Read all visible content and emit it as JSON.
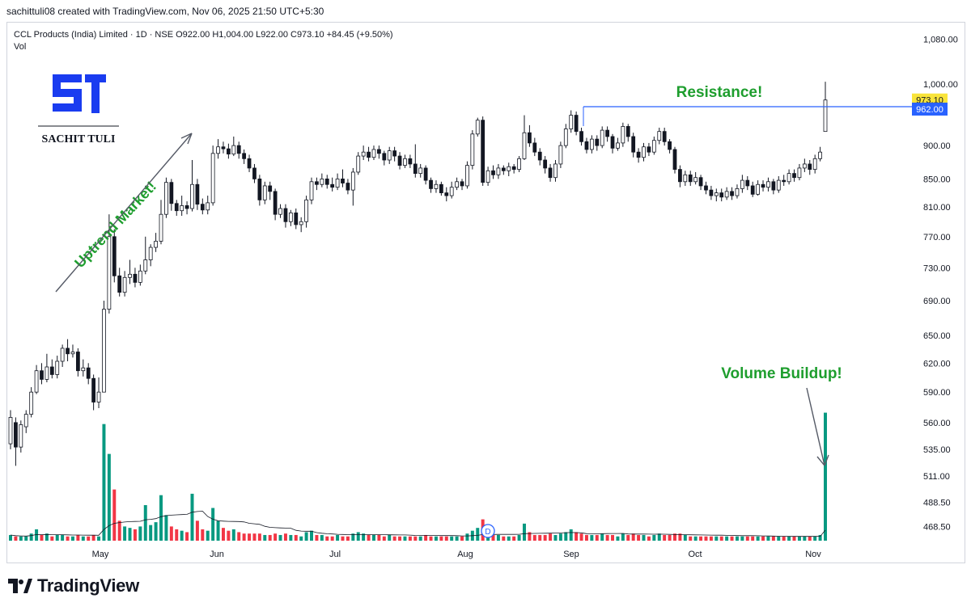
{
  "header": {
    "attribution": "sachittuli08 created with TradingView.com, Nov 06, 2025 21:50 UTC+5:30",
    "symbol": "CCL Products (India) Limited · 1D · NSE",
    "ohlc": "O922.00  H1,004.00  L922.00  C973.10  +84.45 (+9.50%)",
    "vol_label": "Vol"
  },
  "brand": {
    "name": "SACHIT TULI",
    "mark": "ST",
    "color": "#1a3cf0"
  },
  "footer": {
    "logo_text": "TradingView"
  },
  "annotations": {
    "uptrend": "Uptrend Market!",
    "resistance": "Resistance!",
    "volume": "Volume Buildup!"
  },
  "colors": {
    "up": "#089981",
    "down": "#f23645",
    "text_green": "#1e9e2e",
    "resistance_line": "#2962ff",
    "price_tag": "#f9e43a"
  },
  "chart_data": {
    "type": "candlestick",
    "title": "CCL Products (India) Limited · 1D · NSE",
    "y_axis_ticks": [
      "1,080.00",
      "1,000.00",
      "900.00",
      "850.00",
      "810.00",
      "770.00",
      "730.00",
      "690.00",
      "650.00",
      "620.00",
      "590.00",
      "560.00",
      "535.00",
      "511.00",
      "488.50",
      "468.50"
    ],
    "y_tick_values": [
      1080,
      1000,
      900,
      850,
      810,
      770,
      730,
      690,
      650,
      620,
      590,
      560,
      535,
      511,
      488.5,
      468.5
    ],
    "x_axis_labels": [
      "May",
      "Jun",
      "Jul",
      "Aug",
      "Sep",
      "Oct",
      "Nov"
    ],
    "scale": "log",
    "last_price": "973.10",
    "resistance_price": "962.00",
    "resistance_value": 962,
    "dividend_marker": "D",
    "series": [
      {
        "o": 540,
        "c": 565,
        "h": 572,
        "l": 535,
        "v": 0.4
      },
      {
        "o": 560,
        "c": 537,
        "h": 565,
        "l": 520,
        "v": 0.3
      },
      {
        "o": 537,
        "c": 558,
        "h": 562,
        "l": 532,
        "v": 0.3
      },
      {
        "o": 556,
        "c": 568,
        "h": 572,
        "l": 550,
        "v": 0.3
      },
      {
        "o": 568,
        "c": 590,
        "h": 595,
        "l": 565,
        "v": 0.5
      },
      {
        "o": 590,
        "c": 612,
        "h": 618,
        "l": 588,
        "v": 0.8
      },
      {
        "o": 612,
        "c": 603,
        "h": 620,
        "l": 598,
        "v": 0.4
      },
      {
        "o": 603,
        "c": 616,
        "h": 630,
        "l": 600,
        "v": 0.5
      },
      {
        "o": 616,
        "c": 608,
        "h": 624,
        "l": 604,
        "v": 0.3
      },
      {
        "o": 608,
        "c": 622,
        "h": 628,
        "l": 604,
        "v": 0.4
      },
      {
        "o": 622,
        "c": 636,
        "h": 640,
        "l": 616,
        "v": 0.4
      },
      {
        "o": 636,
        "c": 630,
        "h": 646,
        "l": 622,
        "v": 0.3
      },
      {
        "o": 630,
        "c": 632,
        "h": 640,
        "l": 626,
        "v": 0.3
      },
      {
        "o": 632,
        "c": 612,
        "h": 636,
        "l": 606,
        "v": 0.4
      },
      {
        "o": 612,
        "c": 615,
        "h": 624,
        "l": 606,
        "v": 0.3
      },
      {
        "o": 615,
        "c": 604,
        "h": 620,
        "l": 598,
        "v": 0.3
      },
      {
        "o": 604,
        "c": 580,
        "h": 608,
        "l": 572,
        "v": 0.4
      },
      {
        "o": 580,
        "c": 590,
        "h": 605,
        "l": 574,
        "v": 0.3
      },
      {
        "o": 590,
        "c": 680,
        "h": 690,
        "l": 650,
        "v": 8.2
      },
      {
        "o": 680,
        "c": 770,
        "h": 800,
        "l": 675,
        "v": 6.1
      },
      {
        "o": 770,
        "c": 720,
        "h": 780,
        "l": 712,
        "v": 3.6
      },
      {
        "o": 720,
        "c": 700,
        "h": 730,
        "l": 695,
        "v": 1.4
      },
      {
        "o": 700,
        "c": 718,
        "h": 726,
        "l": 695,
        "v": 1.0
      },
      {
        "o": 718,
        "c": 722,
        "h": 740,
        "l": 710,
        "v": 0.9
      },
      {
        "o": 722,
        "c": 712,
        "h": 730,
        "l": 706,
        "v": 0.8
      },
      {
        "o": 712,
        "c": 726,
        "h": 734,
        "l": 708,
        "v": 1.0
      },
      {
        "o": 726,
        "c": 740,
        "h": 770,
        "l": 722,
        "v": 2.5
      },
      {
        "o": 740,
        "c": 756,
        "h": 760,
        "l": 732,
        "v": 1.1
      },
      {
        "o": 756,
        "c": 764,
        "h": 775,
        "l": 750,
        "v": 1.3
      },
      {
        "o": 764,
        "c": 800,
        "h": 820,
        "l": 760,
        "v": 3.2
      },
      {
        "o": 800,
        "c": 845,
        "h": 852,
        "l": 795,
        "v": 1.8
      },
      {
        "o": 845,
        "c": 815,
        "h": 850,
        "l": 805,
        "v": 1.0
      },
      {
        "o": 815,
        "c": 805,
        "h": 820,
        "l": 798,
        "v": 0.8
      },
      {
        "o": 805,
        "c": 812,
        "h": 826,
        "l": 798,
        "v": 0.7
      },
      {
        "o": 812,
        "c": 808,
        "h": 818,
        "l": 800,
        "v": 0.6
      },
      {
        "o": 808,
        "c": 842,
        "h": 878,
        "l": 804,
        "v": 3.3
      },
      {
        "o": 842,
        "c": 814,
        "h": 850,
        "l": 806,
        "v": 1.4
      },
      {
        "o": 814,
        "c": 806,
        "h": 822,
        "l": 800,
        "v": 0.8
      },
      {
        "o": 806,
        "c": 816,
        "h": 826,
        "l": 800,
        "v": 0.7
      },
      {
        "o": 816,
        "c": 888,
        "h": 900,
        "l": 812,
        "v": 2.3
      },
      {
        "o": 888,
        "c": 898,
        "h": 910,
        "l": 880,
        "v": 1.4
      },
      {
        "o": 898,
        "c": 895,
        "h": 906,
        "l": 888,
        "v": 0.9
      },
      {
        "o": 895,
        "c": 887,
        "h": 903,
        "l": 880,
        "v": 0.7
      },
      {
        "o": 887,
        "c": 900,
        "h": 914,
        "l": 884,
        "v": 0.8
      },
      {
        "o": 900,
        "c": 888,
        "h": 906,
        "l": 880,
        "v": 0.6
      },
      {
        "o": 888,
        "c": 880,
        "h": 894,
        "l": 872,
        "v": 0.5
      },
      {
        "o": 880,
        "c": 866,
        "h": 886,
        "l": 860,
        "v": 0.5
      },
      {
        "o": 866,
        "c": 850,
        "h": 872,
        "l": 844,
        "v": 0.5
      },
      {
        "o": 850,
        "c": 820,
        "h": 856,
        "l": 812,
        "v": 0.5
      },
      {
        "o": 820,
        "c": 840,
        "h": 846,
        "l": 814,
        "v": 0.4
      },
      {
        "o": 840,
        "c": 832,
        "h": 846,
        "l": 820,
        "v": 0.4
      },
      {
        "o": 832,
        "c": 800,
        "h": 836,
        "l": 792,
        "v": 0.5
      },
      {
        "o": 800,
        "c": 808,
        "h": 814,
        "l": 795,
        "v": 0.4
      },
      {
        "o": 808,
        "c": 790,
        "h": 814,
        "l": 782,
        "v": 0.5
      },
      {
        "o": 790,
        "c": 802,
        "h": 806,
        "l": 784,
        "v": 0.4
      },
      {
        "o": 802,
        "c": 786,
        "h": 808,
        "l": 780,
        "v": 0.4
      },
      {
        "o": 786,
        "c": 790,
        "h": 796,
        "l": 776,
        "v": 0.3
      },
      {
        "o": 790,
        "c": 820,
        "h": 826,
        "l": 782,
        "v": 0.6
      },
      {
        "o": 820,
        "c": 846,
        "h": 852,
        "l": 814,
        "v": 0.7
      },
      {
        "o": 846,
        "c": 842,
        "h": 852,
        "l": 834,
        "v": 0.4
      },
      {
        "o": 842,
        "c": 850,
        "h": 858,
        "l": 838,
        "v": 0.4
      },
      {
        "o": 850,
        "c": 842,
        "h": 856,
        "l": 836,
        "v": 0.3
      },
      {
        "o": 842,
        "c": 838,
        "h": 852,
        "l": 832,
        "v": 0.3
      },
      {
        "o": 838,
        "c": 850,
        "h": 858,
        "l": 834,
        "v": 0.4
      },
      {
        "o": 850,
        "c": 844,
        "h": 864,
        "l": 838,
        "v": 0.3
      },
      {
        "o": 844,
        "c": 834,
        "h": 850,
        "l": 828,
        "v": 0.3
      },
      {
        "o": 834,
        "c": 860,
        "h": 866,
        "l": 812,
        "v": 0.5
      },
      {
        "o": 860,
        "c": 884,
        "h": 890,
        "l": 856,
        "v": 0.6
      },
      {
        "o": 884,
        "c": 890,
        "h": 900,
        "l": 878,
        "v": 0.5
      },
      {
        "o": 890,
        "c": 882,
        "h": 898,
        "l": 876,
        "v": 0.4
      },
      {
        "o": 882,
        "c": 894,
        "h": 900,
        "l": 878,
        "v": 0.4
      },
      {
        "o": 894,
        "c": 888,
        "h": 900,
        "l": 880,
        "v": 0.4
      },
      {
        "o": 888,
        "c": 878,
        "h": 892,
        "l": 870,
        "v": 0.3
      },
      {
        "o": 878,
        "c": 892,
        "h": 898,
        "l": 872,
        "v": 0.4
      },
      {
        "o": 892,
        "c": 884,
        "h": 898,
        "l": 876,
        "v": 0.3
      },
      {
        "o": 884,
        "c": 870,
        "h": 890,
        "l": 864,
        "v": 0.3
      },
      {
        "o": 870,
        "c": 880,
        "h": 886,
        "l": 866,
        "v": 0.3
      },
      {
        "o": 880,
        "c": 872,
        "h": 886,
        "l": 866,
        "v": 0.3
      },
      {
        "o": 872,
        "c": 858,
        "h": 902,
        "l": 852,
        "v": 0.3
      },
      {
        "o": 858,
        "c": 866,
        "h": 872,
        "l": 852,
        "v": 0.3
      },
      {
        "o": 866,
        "c": 848,
        "h": 870,
        "l": 842,
        "v": 0.4
      },
      {
        "o": 848,
        "c": 836,
        "h": 852,
        "l": 830,
        "v": 0.3
      },
      {
        "o": 836,
        "c": 842,
        "h": 848,
        "l": 830,
        "v": 0.3
      },
      {
        "o": 842,
        "c": 830,
        "h": 846,
        "l": 826,
        "v": 0.3
      },
      {
        "o": 830,
        "c": 826,
        "h": 838,
        "l": 818,
        "v": 0.3
      },
      {
        "o": 826,
        "c": 838,
        "h": 846,
        "l": 822,
        "v": 0.3
      },
      {
        "o": 838,
        "c": 846,
        "h": 852,
        "l": 834,
        "v": 0.3
      },
      {
        "o": 846,
        "c": 840,
        "h": 850,
        "l": 834,
        "v": 0.3
      },
      {
        "o": 840,
        "c": 870,
        "h": 876,
        "l": 836,
        "v": 0.5
      },
      {
        "o": 870,
        "c": 918,
        "h": 924,
        "l": 864,
        "v": 0.7
      },
      {
        "o": 918,
        "c": 940,
        "h": 944,
        "l": 914,
        "v": 0.9
      },
      {
        "o": 940,
        "c": 845,
        "h": 946,
        "l": 840,
        "v": 1.5
      },
      {
        "o": 845,
        "c": 862,
        "h": 868,
        "l": 840,
        "v": 0.5
      },
      {
        "o": 862,
        "c": 856,
        "h": 870,
        "l": 850,
        "v": 0.4
      },
      {
        "o": 856,
        "c": 866,
        "h": 872,
        "l": 850,
        "v": 0.4
      },
      {
        "o": 866,
        "c": 862,
        "h": 870,
        "l": 856,
        "v": 0.3
      },
      {
        "o": 862,
        "c": 868,
        "h": 874,
        "l": 854,
        "v": 0.3
      },
      {
        "o": 868,
        "c": 864,
        "h": 872,
        "l": 858,
        "v": 0.3
      },
      {
        "o": 864,
        "c": 880,
        "h": 884,
        "l": 860,
        "v": 0.4
      },
      {
        "o": 880,
        "c": 920,
        "h": 948,
        "l": 878,
        "v": 1.2
      },
      {
        "o": 920,
        "c": 904,
        "h": 932,
        "l": 898,
        "v": 0.6
      },
      {
        "o": 904,
        "c": 890,
        "h": 912,
        "l": 884,
        "v": 0.4
      },
      {
        "o": 890,
        "c": 878,
        "h": 896,
        "l": 870,
        "v": 0.4
      },
      {
        "o": 878,
        "c": 866,
        "h": 884,
        "l": 858,
        "v": 0.4
      },
      {
        "o": 866,
        "c": 852,
        "h": 872,
        "l": 846,
        "v": 0.5
      },
      {
        "o": 852,
        "c": 872,
        "h": 878,
        "l": 846,
        "v": 0.4
      },
      {
        "o": 872,
        "c": 900,
        "h": 906,
        "l": 866,
        "v": 0.5
      },
      {
        "o": 900,
        "c": 926,
        "h": 934,
        "l": 896,
        "v": 0.6
      },
      {
        "o": 926,
        "c": 948,
        "h": 956,
        "l": 920,
        "v": 0.8
      },
      {
        "o": 948,
        "c": 922,
        "h": 954,
        "l": 916,
        "v": 0.6
      },
      {
        "o": 922,
        "c": 906,
        "h": 928,
        "l": 900,
        "v": 0.5
      },
      {
        "o": 906,
        "c": 894,
        "h": 912,
        "l": 888,
        "v": 0.4
      },
      {
        "o": 894,
        "c": 910,
        "h": 916,
        "l": 888,
        "v": 0.4
      },
      {
        "o": 910,
        "c": 900,
        "h": 916,
        "l": 892,
        "v": 0.4
      },
      {
        "o": 900,
        "c": 924,
        "h": 930,
        "l": 896,
        "v": 0.5
      },
      {
        "o": 924,
        "c": 914,
        "h": 930,
        "l": 906,
        "v": 0.4
      },
      {
        "o": 914,
        "c": 896,
        "h": 918,
        "l": 888,
        "v": 0.4
      },
      {
        "o": 896,
        "c": 904,
        "h": 912,
        "l": 892,
        "v": 0.3
      },
      {
        "o": 904,
        "c": 930,
        "h": 936,
        "l": 898,
        "v": 0.5
      },
      {
        "o": 930,
        "c": 914,
        "h": 934,
        "l": 906,
        "v": 0.4
      },
      {
        "o": 914,
        "c": 890,
        "h": 920,
        "l": 882,
        "v": 0.5
      },
      {
        "o": 890,
        "c": 882,
        "h": 896,
        "l": 874,
        "v": 0.4
      },
      {
        "o": 882,
        "c": 898,
        "h": 904,
        "l": 876,
        "v": 0.4
      },
      {
        "o": 898,
        "c": 890,
        "h": 904,
        "l": 884,
        "v": 0.3
      },
      {
        "o": 890,
        "c": 908,
        "h": 914,
        "l": 886,
        "v": 0.4
      },
      {
        "o": 908,
        "c": 922,
        "h": 928,
        "l": 902,
        "v": 0.5
      },
      {
        "o": 922,
        "c": 906,
        "h": 928,
        "l": 900,
        "v": 0.4
      },
      {
        "o": 906,
        "c": 894,
        "h": 910,
        "l": 888,
        "v": 0.4
      },
      {
        "o": 894,
        "c": 864,
        "h": 898,
        "l": 858,
        "v": 0.5
      },
      {
        "o": 864,
        "c": 846,
        "h": 870,
        "l": 838,
        "v": 0.5
      },
      {
        "o": 846,
        "c": 856,
        "h": 862,
        "l": 840,
        "v": 0.4
      },
      {
        "o": 856,
        "c": 846,
        "h": 862,
        "l": 840,
        "v": 0.3
      },
      {
        "o": 846,
        "c": 852,
        "h": 860,
        "l": 842,
        "v": 0.3
      },
      {
        "o": 852,
        "c": 840,
        "h": 856,
        "l": 834,
        "v": 0.3
      },
      {
        "o": 840,
        "c": 834,
        "h": 846,
        "l": 828,
        "v": 0.3
      },
      {
        "o": 834,
        "c": 826,
        "h": 840,
        "l": 820,
        "v": 0.3
      },
      {
        "o": 826,
        "c": 830,
        "h": 836,
        "l": 818,
        "v": 0.3
      },
      {
        "o": 830,
        "c": 824,
        "h": 836,
        "l": 818,
        "v": 0.3
      },
      {
        "o": 824,
        "c": 832,
        "h": 838,
        "l": 820,
        "v": 0.3
      },
      {
        "o": 832,
        "c": 826,
        "h": 838,
        "l": 820,
        "v": 0.3
      },
      {
        "o": 826,
        "c": 836,
        "h": 842,
        "l": 822,
        "v": 0.3
      },
      {
        "o": 836,
        "c": 848,
        "h": 856,
        "l": 830,
        "v": 0.3
      },
      {
        "o": 848,
        "c": 840,
        "h": 854,
        "l": 834,
        "v": 0.3
      },
      {
        "o": 840,
        "c": 828,
        "h": 846,
        "l": 824,
        "v": 0.3
      },
      {
        "o": 828,
        "c": 842,
        "h": 848,
        "l": 826,
        "v": 0.3
      },
      {
        "o": 842,
        "c": 838,
        "h": 848,
        "l": 832,
        "v": 0.3
      },
      {
        "o": 838,
        "c": 846,
        "h": 852,
        "l": 832,
        "v": 0.3
      },
      {
        "o": 846,
        "c": 834,
        "h": 850,
        "l": 828,
        "v": 0.3
      },
      {
        "o": 834,
        "c": 848,
        "h": 854,
        "l": 830,
        "v": 0.3
      },
      {
        "o": 848,
        "c": 846,
        "h": 856,
        "l": 840,
        "v": 0.3
      },
      {
        "o": 846,
        "c": 858,
        "h": 864,
        "l": 842,
        "v": 0.3
      },
      {
        "o": 858,
        "c": 852,
        "h": 864,
        "l": 846,
        "v": 0.3
      },
      {
        "o": 852,
        "c": 866,
        "h": 872,
        "l": 848,
        "v": 0.3
      },
      {
        "o": 866,
        "c": 872,
        "h": 880,
        "l": 860,
        "v": 0.3
      },
      {
        "o": 872,
        "c": 864,
        "h": 878,
        "l": 856,
        "v": 0.3
      },
      {
        "o": 864,
        "c": 880,
        "h": 886,
        "l": 858,
        "v": 0.3
      },
      {
        "o": 880,
        "c": 890,
        "h": 898,
        "l": 876,
        "v": 0.4
      },
      {
        "o": 922,
        "c": 973.1,
        "h": 1004,
        "l": 922,
        "v": 9.0
      }
    ]
  }
}
